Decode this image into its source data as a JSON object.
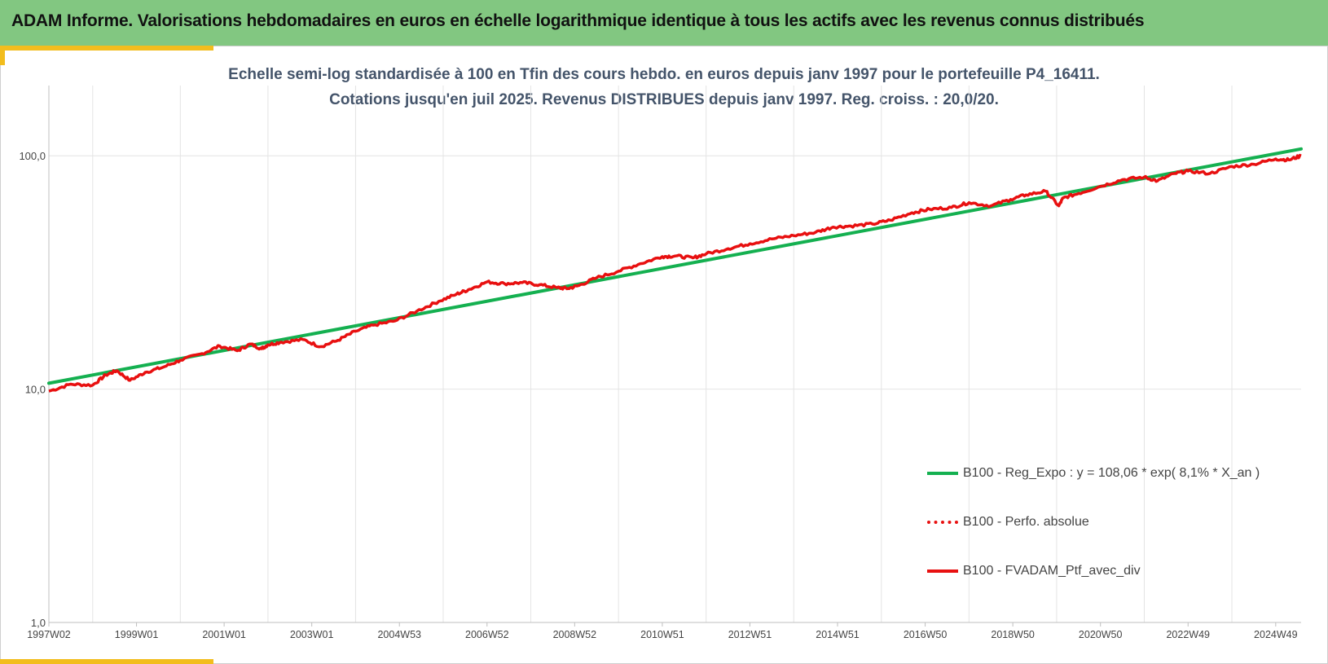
{
  "banner": {
    "title": "ADAM Informe. Valorisations hebdomadaires en euros en échelle logarithmique identique à tous les actifs avec les revenus connus distribués"
  },
  "chart_data": {
    "type": "line",
    "title": "Echelle semi-log standardisée  à 100 en Tfin des cours hebdo.  en euros depuis janv 1997 pour le portefeuille P4_16411.",
    "subtitle": "Cotations jusqu'en juil 2025. Revenus DISTRIBUES depuis janv 1997. Reg. croiss. : 20,0/20.",
    "y_scale": "log",
    "ylim": [
      1,
      200
    ],
    "y_ticks": [
      1,
      10,
      100
    ],
    "y_tick_labels": [
      "1,0",
      "10,0",
      "100,0"
    ],
    "x_range": [
      1997.0,
      2025.58
    ],
    "x_ticks": [
      1997.0,
      1999.0,
      2001.0,
      2003.0,
      2005.0,
      2007.0,
      2009.0,
      2011.0,
      2013.0,
      2015.0,
      2017.0,
      2019.0,
      2021.0,
      2023.0,
      2025.0
    ],
    "x_tick_labels": [
      "1997W02",
      "1999W01",
      "2001W01",
      "2003W01",
      "2004W53",
      "2006W52",
      "2008W52",
      "2010W51",
      "2012W51",
      "2014W51",
      "2016W50",
      "2018W50",
      "2020W50",
      "2022W49",
      "2024W49"
    ],
    "grid": true,
    "legend_position": "right",
    "series": [
      {
        "name": "B100 - Reg_Expo : y = 108,06 * exp( 8,1% *  X_an )",
        "color": "#14b050",
        "style": "solid",
        "x": [
          1997.0,
          2025.58
        ],
        "values": [
          10.6,
          107.0
        ]
      },
      {
        "name": "B100 - Perfo. absolue",
        "color": "#e81010",
        "style": "dotted",
        "x": [],
        "values": []
      },
      {
        "name": "B100 - FVADAM_Ptf_avec_div",
        "color": "#e81010",
        "style": "solid",
        "x": [
          1997.0,
          1997.5,
          1998.0,
          1998.3,
          1998.55,
          1998.85,
          1999.2,
          1999.6,
          2000.0,
          2000.5,
          2000.9,
          2001.3,
          2001.6,
          2001.85,
          2002.0,
          2002.3,
          2002.8,
          2003.2,
          2003.6,
          2004.0,
          2004.4,
          2004.9,
          2005.4,
          2005.9,
          2006.3,
          2006.6,
          2007.0,
          2007.4,
          2007.8,
          2008.2,
          2008.6,
          2008.85,
          2009.1,
          2009.5,
          2010.0,
          2010.5,
          2011.0,
          2011.3,
          2011.7,
          2012.0,
          2012.5,
          2013.0,
          2013.5,
          2014.0,
          2014.5,
          2014.9,
          2015.3,
          2015.8,
          2016.2,
          2016.7,
          2017.1,
          2017.6,
          2018.0,
          2018.5,
          2018.95,
          2019.3,
          2019.75,
          2020.05,
          2020.15,
          2020.5,
          2021.0,
          2021.5,
          2022.0,
          2022.3,
          2022.7,
          2023.0,
          2023.5,
          2024.0,
          2024.5,
          2025.0,
          2025.3,
          2025.58
        ],
        "values": [
          9.8,
          10.5,
          10.4,
          11.5,
          12.0,
          10.9,
          11.8,
          12.4,
          13.3,
          14.2,
          15.3,
          14.6,
          15.6,
          14.9,
          15.5,
          15.9,
          16.3,
          15.2,
          16.2,
          17.7,
          18.8,
          19.6,
          21.6,
          23.8,
          25.5,
          26.8,
          28.8,
          28.3,
          28.6,
          28.0,
          27.2,
          27.0,
          27.8,
          30.0,
          32.0,
          34.5,
          37.0,
          37.2,
          36.5,
          38.0,
          40.0,
          42.0,
          44.0,
          45.5,
          47.0,
          49.5,
          50.0,
          51.0,
          53.0,
          57.0,
          59.0,
          60.0,
          63.0,
          61.0,
          65.0,
          68.0,
          70.5,
          61.0,
          66.0,
          69.0,
          74.0,
          79.0,
          81.0,
          78.0,
          84.0,
          86.0,
          84.0,
          90.0,
          92.0,
          97.0,
          96.0,
          100.0
        ]
      }
    ]
  }
}
